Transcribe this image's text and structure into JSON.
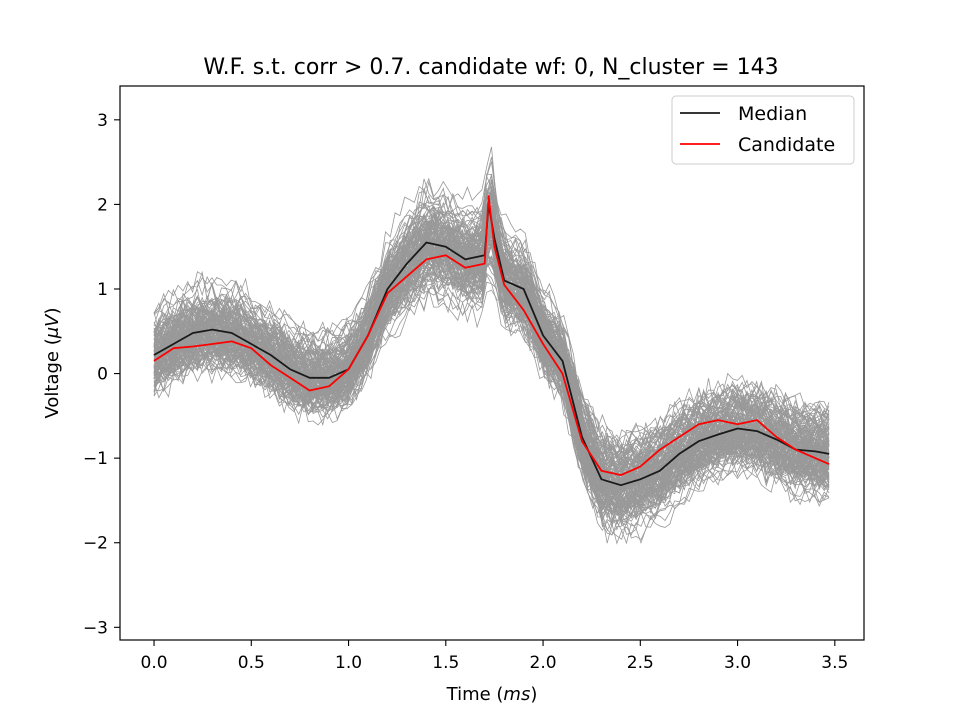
{
  "chart_data": {
    "type": "line",
    "title": "W.F. s.t. corr > 0.7. candidate wf: 0, N_cluster = 143",
    "xlabel_prefix": "Time (",
    "xlabel_unit": "ms",
    "xlabel_suffix": ")",
    "ylabel_prefix": "Voltage (",
    "ylabel_unit": "μV",
    "ylabel_suffix": ")",
    "xlim": [
      -0.175,
      3.65
    ],
    "ylim": [
      -3.15,
      3.4
    ],
    "xticks": [
      0.0,
      0.5,
      1.0,
      1.5,
      2.0,
      2.5,
      3.0,
      3.5
    ],
    "xtick_labels": [
      "0.0",
      "0.5",
      "1.0",
      "1.5",
      "2.0",
      "2.5",
      "3.0",
      "3.5"
    ],
    "yticks": [
      -3,
      -2,
      -1,
      0,
      1,
      2,
      3
    ],
    "ytick_labels": [
      "−3",
      "−2",
      "−1",
      "0",
      "1",
      "2",
      "3"
    ],
    "grid": false,
    "legend_position": "top-right",
    "n_background_waveforms": 143,
    "colors": {
      "background": "#999999",
      "median": "#1a1a1a",
      "candidate": "#ff0000"
    },
    "series": [
      {
        "name": "Median",
        "x": [
          0.0,
          0.1,
          0.2,
          0.3,
          0.4,
          0.5,
          0.6,
          0.7,
          0.8,
          0.9,
          1.0,
          1.1,
          1.2,
          1.3,
          1.4,
          1.5,
          1.6,
          1.7,
          1.72,
          1.75,
          1.8,
          1.9,
          2.0,
          2.1,
          2.2,
          2.3,
          2.4,
          2.5,
          2.6,
          2.7,
          2.8,
          2.9,
          3.0,
          3.1,
          3.2,
          3.3,
          3.4,
          3.47
        ],
        "y": [
          0.22,
          0.35,
          0.48,
          0.52,
          0.48,
          0.35,
          0.22,
          0.05,
          -0.05,
          -0.05,
          0.05,
          0.45,
          1.0,
          1.3,
          1.55,
          1.5,
          1.35,
          1.4,
          2.0,
          1.6,
          1.1,
          1.0,
          0.45,
          0.15,
          -0.75,
          -1.25,
          -1.32,
          -1.25,
          -1.15,
          -0.95,
          -0.8,
          -0.72,
          -0.65,
          -0.68,
          -0.78,
          -0.9,
          -0.92,
          -0.95
        ]
      },
      {
        "name": "Candidate",
        "x": [
          0.0,
          0.1,
          0.2,
          0.3,
          0.4,
          0.5,
          0.6,
          0.7,
          0.8,
          0.9,
          1.0,
          1.1,
          1.2,
          1.3,
          1.4,
          1.5,
          1.6,
          1.7,
          1.72,
          1.75,
          1.8,
          1.9,
          2.0,
          2.1,
          2.2,
          2.3,
          2.4,
          2.5,
          2.6,
          2.7,
          2.8,
          2.9,
          3.0,
          3.1,
          3.2,
          3.3,
          3.4,
          3.47
        ],
        "y": [
          0.15,
          0.3,
          0.32,
          0.35,
          0.38,
          0.3,
          0.1,
          -0.05,
          -0.2,
          -0.15,
          0.05,
          0.45,
          0.95,
          1.15,
          1.35,
          1.4,
          1.25,
          1.3,
          2.1,
          1.5,
          1.05,
          0.75,
          0.35,
          0.0,
          -0.8,
          -1.15,
          -1.2,
          -1.1,
          -0.9,
          -0.75,
          -0.6,
          -0.55,
          -0.6,
          -0.55,
          -0.75,
          -0.9,
          -1.0,
          -1.07
        ]
      }
    ]
  }
}
